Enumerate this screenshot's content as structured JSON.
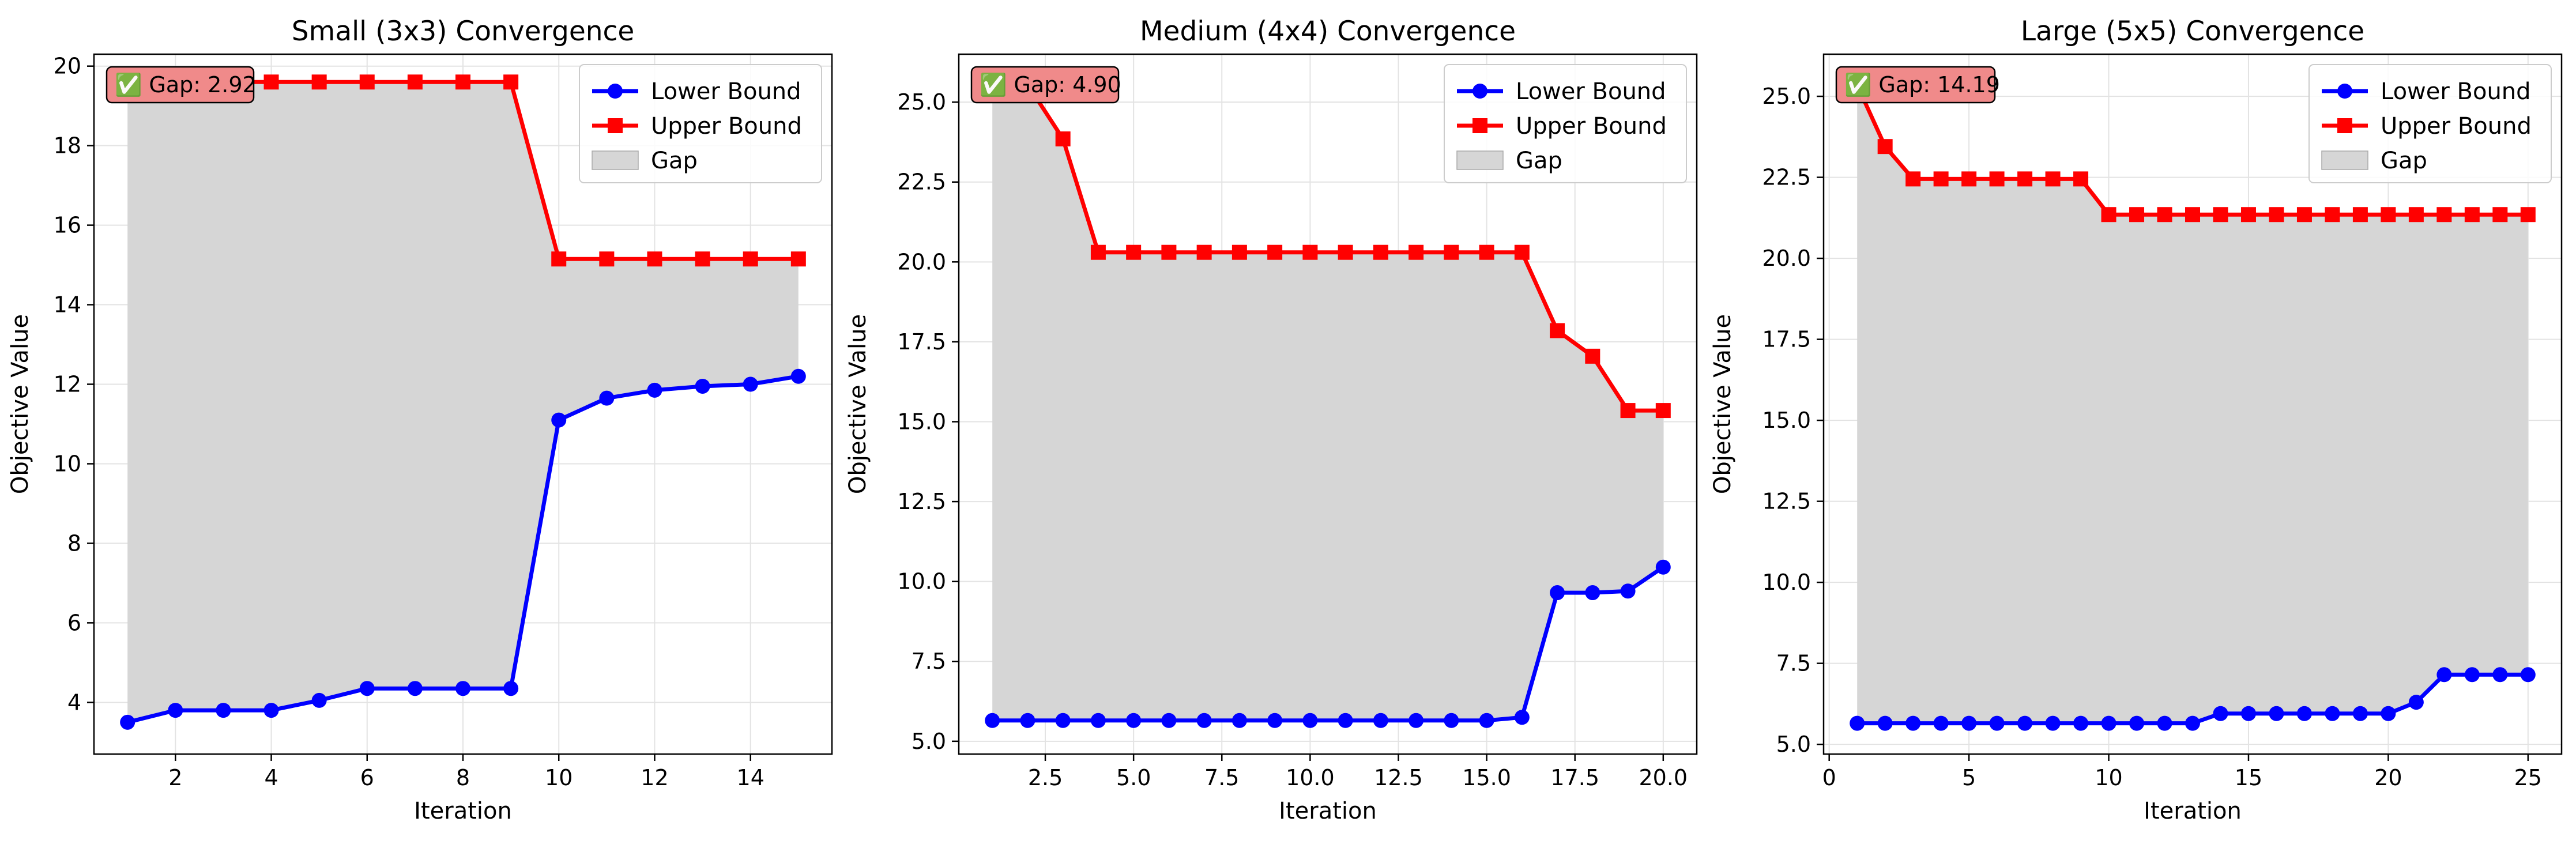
{
  "chart_data": [
    {
      "type": "line",
      "title": "Small (3x3) Convergence",
      "xlabel": "Iteration",
      "ylabel": "Objective Value",
      "xlim": [
        0.3,
        15.7
      ],
      "ylim": [
        2.7,
        20.3
      ],
      "xticks": [
        2,
        4,
        6,
        8,
        10,
        12,
        14
      ],
      "xtick_labels": [
        "2",
        "4",
        "6",
        "8",
        "10",
        "12",
        "14"
      ],
      "yticks": [
        4,
        6,
        8,
        10,
        12,
        14,
        16,
        18,
        20
      ],
      "ytick_labels": [
        "4",
        "6",
        "8",
        "10",
        "12",
        "14",
        "16",
        "18",
        "20"
      ],
      "grid": true,
      "legend_position": "top-right",
      "x": [
        1,
        2,
        3,
        4,
        5,
        6,
        7,
        8,
        9,
        10,
        11,
        12,
        13,
        14,
        15
      ],
      "series": [
        {
          "name": "Lower Bound",
          "color": "#0000ff",
          "marker": "circle",
          "values": [
            3.5,
            3.8,
            3.8,
            3.8,
            4.05,
            4.35,
            4.35,
            4.35,
            4.35,
            11.1,
            11.65,
            11.85,
            11.95,
            12.0,
            12.2
          ]
        },
        {
          "name": "Upper Bound",
          "color": "#ff0000",
          "marker": "square",
          "values": [
            19.6,
            19.6,
            19.6,
            19.6,
            19.6,
            19.6,
            19.6,
            19.6,
            19.6,
            15.15,
            15.15,
            15.15,
            15.15,
            15.15,
            15.15
          ]
        }
      ],
      "gap_name": "Gap",
      "annotation": "✅ Gap: 2.92"
    },
    {
      "type": "line",
      "title": "Medium (4x4) Convergence",
      "xlabel": "Iteration",
      "ylabel": "Objective Value",
      "xlim": [
        0.05,
        20.95
      ],
      "ylim": [
        4.6,
        26.5
      ],
      "xticks": [
        2.5,
        5.0,
        7.5,
        10.0,
        12.5,
        15.0,
        17.5,
        20.0
      ],
      "xtick_labels": [
        "2.5",
        "5.0",
        "7.5",
        "10.0",
        "12.5",
        "15.0",
        "17.5",
        "20.0"
      ],
      "yticks": [
        5.0,
        7.5,
        10.0,
        12.5,
        15.0,
        17.5,
        20.0,
        22.5,
        25.0
      ],
      "ytick_labels": [
        "5.0",
        "7.5",
        "10.0",
        "12.5",
        "15.0",
        "17.5",
        "20.0",
        "22.5",
        "25.0"
      ],
      "grid": true,
      "legend_position": "top-right",
      "x": [
        1,
        2,
        3,
        4,
        5,
        6,
        7,
        8,
        9,
        10,
        11,
        12,
        13,
        14,
        15,
        16,
        17,
        18,
        19,
        20
      ],
      "series": [
        {
          "name": "Lower Bound",
          "color": "#0000ff",
          "marker": "circle",
          "values": [
            5.65,
            5.65,
            5.65,
            5.65,
            5.65,
            5.65,
            5.65,
            5.65,
            5.65,
            5.65,
            5.65,
            5.65,
            5.65,
            5.65,
            5.65,
            5.75,
            9.65,
            9.65,
            9.7,
            10.45
          ]
        },
        {
          "name": "Upper Bound",
          "color": "#ff0000",
          "marker": "square",
          "values": [
            25.55,
            25.55,
            23.85,
            20.3,
            20.3,
            20.3,
            20.3,
            20.3,
            20.3,
            20.3,
            20.3,
            20.3,
            20.3,
            20.3,
            20.3,
            20.3,
            17.85,
            17.05,
            15.35,
            15.35
          ]
        }
      ],
      "gap_name": "Gap",
      "annotation": "✅ Gap: 4.90"
    },
    {
      "type": "line",
      "title": "Large (5x5) Convergence",
      "xlabel": "Iteration",
      "ylabel": "Objective Value",
      "xlim": [
        -0.2,
        26.2
      ],
      "ylim": [
        4.7,
        26.3
      ],
      "xticks": [
        0,
        5,
        10,
        15,
        20,
        25
      ],
      "xtick_labels": [
        "0",
        "5",
        "10",
        "15",
        "20",
        "25"
      ],
      "yticks": [
        5.0,
        7.5,
        10.0,
        12.5,
        15.0,
        17.5,
        20.0,
        22.5,
        25.0
      ],
      "ytick_labels": [
        "5.0",
        "7.5",
        "10.0",
        "12.5",
        "15.0",
        "17.5",
        "20.0",
        "22.5",
        "25.0"
      ],
      "grid": true,
      "legend_position": "top-right",
      "x": [
        1,
        2,
        3,
        4,
        5,
        6,
        7,
        8,
        9,
        10,
        11,
        12,
        13,
        14,
        15,
        16,
        17,
        18,
        19,
        20,
        21,
        22,
        23,
        24,
        25
      ],
      "series": [
        {
          "name": "Lower Bound",
          "color": "#0000ff",
          "marker": "circle",
          "values": [
            5.65,
            5.65,
            5.65,
            5.65,
            5.65,
            5.65,
            5.65,
            5.65,
            5.65,
            5.65,
            5.65,
            5.65,
            5.65,
            5.95,
            5.95,
            5.95,
            5.95,
            5.95,
            5.95,
            5.95,
            6.3,
            7.15,
            7.15,
            7.15,
            7.15
          ]
        },
        {
          "name": "Upper Bound",
          "color": "#ff0000",
          "marker": "square",
          "values": [
            25.35,
            23.45,
            22.45,
            22.45,
            22.45,
            22.45,
            22.45,
            22.45,
            22.45,
            21.35,
            21.35,
            21.35,
            21.35,
            21.35,
            21.35,
            21.35,
            21.35,
            21.35,
            21.35,
            21.35,
            21.35,
            21.35,
            21.35,
            21.35,
            21.35
          ]
        }
      ],
      "gap_name": "Gap",
      "annotation": "✅ Gap: 14.19"
    }
  ],
  "colors": {
    "gap_fill": "#d6d6d6",
    "annotation_fill": "#f08a8a",
    "grid": "#e3e3e3"
  }
}
